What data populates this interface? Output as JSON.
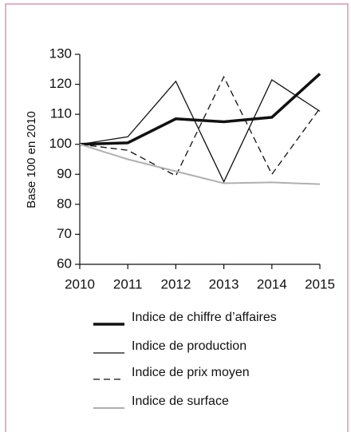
{
  "chart_data": {
    "type": "line",
    "ylabel": "Base 100 en 2010",
    "categories": [
      "2010",
      "2011",
      "2012",
      "2013",
      "2014",
      "2015"
    ],
    "ylim": [
      60,
      130
    ],
    "yticks": [
      60,
      70,
      80,
      90,
      100,
      110,
      120,
      130
    ],
    "series": [
      {
        "name": "Indice de chiffre d’affaires",
        "color": "#111111",
        "width": 3.5,
        "dash": "solid",
        "values": [
          100,
          100.5,
          108.5,
          107.5,
          109,
          123.5
        ]
      },
      {
        "name": "Indice de production",
        "color": "#111111",
        "width": 1.3,
        "dash": "solid",
        "values": [
          100,
          102.5,
          121,
          87.5,
          121.5,
          111
        ]
      },
      {
        "name": "Indice de prix moyen",
        "color": "#111111",
        "width": 1.3,
        "dash": "dashed",
        "values": [
          100,
          98,
          89.5,
          122.5,
          90,
          112
        ]
      },
      {
        "name": "Indice de surface",
        "color": "#b0b0b0",
        "width": 2,
        "dash": "solid",
        "values": [
          100,
          95,
          91,
          87,
          87.3,
          86.7
        ]
      }
    ]
  }
}
